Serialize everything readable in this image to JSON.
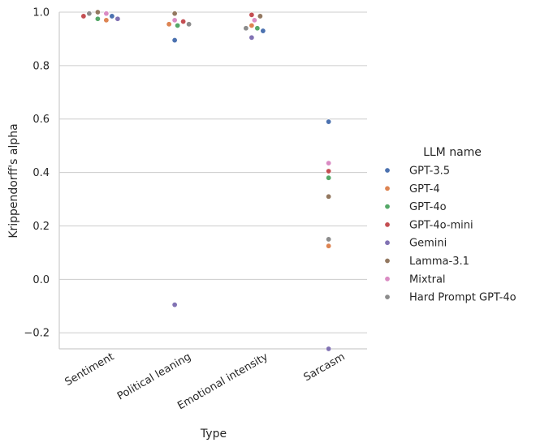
{
  "chart_data": {
    "type": "scatter",
    "subtype": "swarm",
    "title": "",
    "xlabel": "Type",
    "ylabel": "Krippendorff's alpha",
    "ylim": [
      -0.26,
      1.0
    ],
    "yticks": [
      -0.2,
      0.0,
      0.2,
      0.4,
      0.6,
      0.8,
      1.0
    ],
    "ytick_labels": [
      "−0.2",
      "0.0",
      "0.2",
      "0.4",
      "0.6",
      "0.8",
      "1.0"
    ],
    "grid": "horizontal",
    "categories": [
      "Sentiment",
      "Political leaning",
      "Emotional intensity",
      "Sarcasm"
    ],
    "legend": {
      "title": "LLM name",
      "placement": "right"
    },
    "series": [
      {
        "name": "GPT-3.5",
        "color": "#4c72b0",
        "values": [
          0.985,
          0.895,
          0.93,
          0.59
        ]
      },
      {
        "name": "GPT-4",
        "color": "#dd8452",
        "values": [
          0.97,
          0.955,
          0.95,
          0.125
        ]
      },
      {
        "name": "GPT-4o",
        "color": "#55a868",
        "values": [
          0.975,
          0.95,
          0.94,
          0.38
        ]
      },
      {
        "name": "GPT-4o-mini",
        "color": "#c44e52",
        "values": [
          0.985,
          0.965,
          0.99,
          0.405
        ]
      },
      {
        "name": "Gemini",
        "color": "#8172b3",
        "values": [
          0.975,
          -0.095,
          0.905,
          -0.26
        ]
      },
      {
        "name": "Lamma-3.1",
        "color": "#937860",
        "values": [
          1.0,
          0.995,
          0.985,
          0.31
        ]
      },
      {
        "name": "Mixtral",
        "color": "#da8bc3",
        "values": [
          0.995,
          0.97,
          0.97,
          0.435
        ]
      },
      {
        "name": "Hard Prompt GPT-4o",
        "color": "#8c8c8c",
        "values": [
          0.995,
          0.955,
          0.94,
          0.15
        ]
      }
    ]
  }
}
